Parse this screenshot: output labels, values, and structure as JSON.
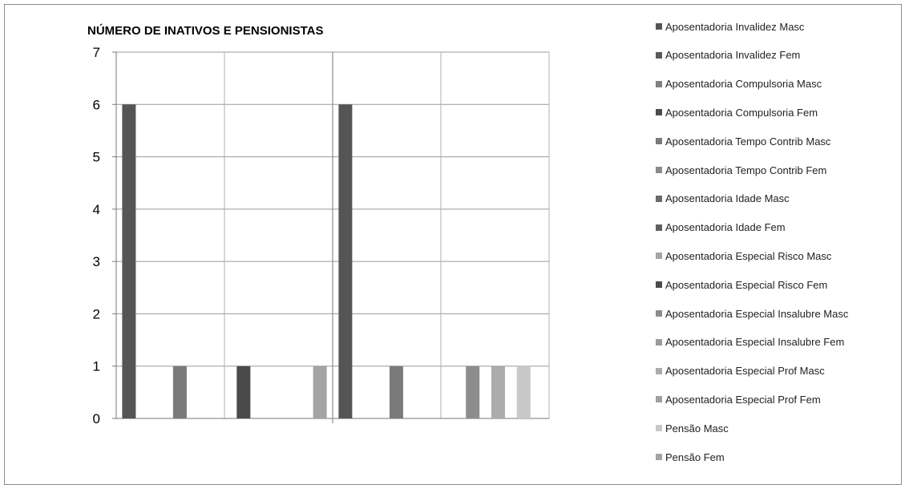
{
  "chart_data": {
    "type": "bar",
    "title": "NÚMERO DE INATIVOS E PENSIONISTAS",
    "xlabel": "",
    "ylabel": "",
    "ylim": [
      0,
      7
    ],
    "yticks": [
      0,
      1,
      2,
      3,
      4,
      5,
      6,
      7
    ],
    "grid": true,
    "legend_position": "right",
    "categories": [
      "",
      ""
    ],
    "series": [
      {
        "name": "Aposentadoria Invalidez Masc",
        "color": "#555555",
        "values": [
          6,
          6
        ]
      },
      {
        "name": "Aposentadoria Invalidez Fem",
        "color": "#5a5a5a",
        "values": [
          0,
          0
        ]
      },
      {
        "name": "Aposentadoria Compulsoria Masc",
        "color": "#7f7f7f",
        "values": [
          0,
          0
        ]
      },
      {
        "name": "Aposentadoria Compulsoria Fem",
        "color": "#4b4b4b",
        "values": [
          0,
          0
        ]
      },
      {
        "name": "Aposentadoria Tempo Contrib Masc",
        "color": "#7a7a7a",
        "values": [
          1,
          1
        ]
      },
      {
        "name": "Aposentadoria Tempo Contrib Fem",
        "color": "#8a8a8a",
        "values": [
          0,
          0
        ]
      },
      {
        "name": "Aposentadoria Idade Masc",
        "color": "#6b6b6b",
        "values": [
          0,
          0
        ]
      },
      {
        "name": "Aposentadoria Idade Fem",
        "color": "#5f5f5f",
        "values": [
          0,
          0
        ]
      },
      {
        "name": "Aposentadoria Especial Risco Masc",
        "color": "#a5a5a5",
        "values": [
          0,
          0
        ]
      },
      {
        "name": "Aposentadoria Especial Risco Fem",
        "color": "#4a4a4a",
        "values": [
          1,
          0
        ]
      },
      {
        "name": "Aposentadoria Especial Insalubre Masc",
        "color": "#8d8d8d",
        "values": [
          0,
          1
        ]
      },
      {
        "name": "Aposentadoria Especial Insalubre Fem",
        "color": "#9b9b9b",
        "values": [
          0,
          0
        ]
      },
      {
        "name": "Aposentadoria Especial Prof Masc",
        "color": "#ababab",
        "values": [
          0,
          1
        ]
      },
      {
        "name": "Aposentadoria Especial Prof Fem",
        "color": "#a0a0a0",
        "values": [
          0,
          0
        ]
      },
      {
        "name": "Pensão Masc",
        "color": "#c8c8c8",
        "values": [
          0,
          1
        ]
      },
      {
        "name": "Pensão Fem",
        "color": "#a3a3a3",
        "values": [
          1,
          0
        ]
      }
    ]
  }
}
